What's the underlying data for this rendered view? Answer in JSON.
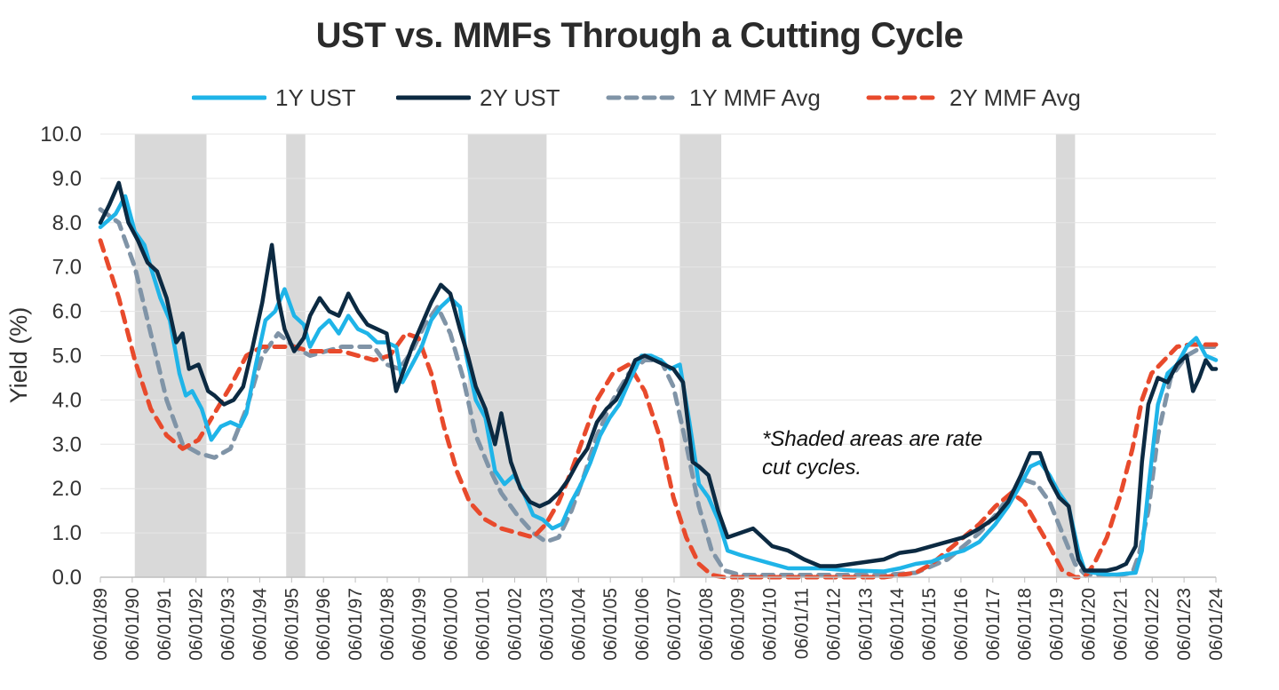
{
  "chart_data": {
    "type": "line",
    "title": "UST vs. MMFs Through a Cutting Cycle",
    "xlabel": "",
    "ylabel": "Yield (%)",
    "ylim": [
      0,
      10
    ],
    "xlim": [
      1989.42,
      2024.42
    ],
    "y_ticks": [
      "0.0",
      "1.0",
      "2.0",
      "3.0",
      "4.0",
      "5.0",
      "6.0",
      "7.0",
      "8.0",
      "9.0",
      "10.0"
    ],
    "x_ticks": [
      "06/01/89",
      "06/01/90",
      "06/01/91",
      "06/01/92",
      "06/01/93",
      "06/01/94",
      "06/01/95",
      "06/01/96",
      "06/01/97",
      "06/01/98",
      "06/01/99",
      "06/01/00",
      "06/01/01",
      "06/01/02",
      "06/01/03",
      "06/01/04",
      "06/01/05",
      "06/01/06",
      "06/01/07",
      "06/01/08",
      "06/01/09",
      "06/01/10",
      "06/01/11",
      "06/01/12",
      "06/01/13",
      "06/01/14",
      "06/01/15",
      "06/01/16",
      "06/01/17",
      "06/01/18",
      "06/01/19",
      "06/01/20",
      "06/01/21",
      "06/01/22",
      "06/01/23",
      "06/01/24"
    ],
    "grid": true,
    "legend_position": "top-center",
    "annotation": [
      "*Shaded areas are rate",
      "cut cycles."
    ],
    "shaded_periods": [
      [
        1990.5,
        1992.75
      ],
      [
        1995.25,
        1995.85
      ],
      [
        2000.95,
        2003.42
      ],
      [
        2007.6,
        2008.9
      ],
      [
        2019.4,
        2020.0
      ]
    ],
    "series": [
      {
        "name": "1Y UST",
        "color": "#1fb4e8",
        "style": "solid",
        "x": [
          1989.42,
          1989.9,
          1990.2,
          1990.5,
          1990.8,
          1991.0,
          1991.3,
          1991.6,
          1991.9,
          1992.1,
          1992.3,
          1992.6,
          1992.9,
          1993.2,
          1993.5,
          1993.8,
          1994.0,
          1994.3,
          1994.6,
          1994.9,
          1995.2,
          1995.5,
          1995.8,
          1996.0,
          1996.3,
          1996.6,
          1996.9,
          1997.2,
          1997.5,
          1997.8,
          1998.1,
          1998.4,
          1998.7,
          1998.9,
          1999.2,
          1999.5,
          1999.8,
          2000.1,
          2000.4,
          2000.7,
          2000.9,
          2001.2,
          2001.5,
          2001.8,
          2002.1,
          2002.4,
          2002.7,
          2003.0,
          2003.3,
          2003.6,
          2003.9,
          2004.2,
          2004.5,
          2004.8,
          2005.1,
          2005.4,
          2005.7,
          2006.0,
          2006.4,
          2006.7,
          2007.0,
          2007.3,
          2007.6,
          2007.9,
          2008.2,
          2008.5,
          2008.8,
          2009.1,
          2009.5,
          2010.0,
          2010.5,
          2011.0,
          2011.5,
          2012.0,
          2013.0,
          2014.0,
          2014.5,
          2015.0,
          2015.5,
          2016.0,
          2016.5,
          2017.0,
          2017.5,
          2017.9,
          2018.3,
          2018.6,
          2018.9,
          2019.2,
          2019.5,
          2019.8,
          2020.1,
          2020.3,
          2020.6,
          2021.0,
          2021.3,
          2021.6,
          2021.9,
          2022.1,
          2022.3,
          2022.6,
          2022.9,
          2023.2,
          2023.5,
          2023.8,
          2024.1,
          2024.42
        ],
        "values": [
          7.9,
          8.2,
          8.6,
          7.8,
          7.5,
          7.0,
          6.3,
          5.8,
          4.6,
          4.1,
          4.2,
          3.8,
          3.1,
          3.4,
          3.5,
          3.4,
          3.7,
          4.8,
          5.8,
          6.0,
          6.5,
          5.9,
          5.7,
          5.2,
          5.6,
          5.8,
          5.5,
          5.9,
          5.6,
          5.5,
          5.3,
          5.3,
          5.2,
          4.4,
          4.8,
          5.2,
          5.8,
          6.1,
          6.3,
          6.1,
          5.0,
          4.0,
          3.6,
          2.4,
          2.1,
          2.3,
          1.9,
          1.4,
          1.3,
          1.1,
          1.2,
          1.7,
          2.1,
          2.6,
          3.2,
          3.6,
          3.9,
          4.4,
          5.0,
          5.0,
          4.9,
          4.7,
          4.8,
          3.5,
          2.1,
          1.8,
          1.3,
          0.6,
          0.5,
          0.4,
          0.3,
          0.2,
          0.2,
          0.2,
          0.15,
          0.13,
          0.2,
          0.3,
          0.35,
          0.5,
          0.6,
          0.8,
          1.2,
          1.6,
          2.1,
          2.5,
          2.6,
          2.3,
          1.9,
          1.6,
          0.6,
          0.15,
          0.1,
          0.06,
          0.06,
          0.08,
          0.1,
          0.6,
          2.0,
          3.9,
          4.6,
          4.8,
          5.2,
          5.4,
          5.0,
          4.9
        ]
      },
      {
        "name": "2Y UST",
        "color": "#0c2a42",
        "style": "solid",
        "x": [
          1989.42,
          1989.7,
          1990.0,
          1990.3,
          1990.6,
          1990.9,
          1991.2,
          1991.5,
          1991.8,
          1992.0,
          1992.2,
          1992.5,
          1992.8,
          1993.0,
          1993.3,
          1993.6,
          1993.9,
          1994.2,
          1994.5,
          1994.8,
          1995.0,
          1995.2,
          1995.5,
          1995.8,
          1996.0,
          1996.3,
          1996.6,
          1996.9,
          1997.2,
          1997.5,
          1997.8,
          1998.1,
          1998.4,
          1998.7,
          1998.9,
          1999.2,
          1999.5,
          1999.8,
          2000.1,
          2000.4,
          2000.7,
          2000.95,
          2001.2,
          2001.5,
          2001.8,
          2002.0,
          2002.3,
          2002.6,
          2002.9,
          2003.2,
          2003.5,
          2003.8,
          2004.1,
          2004.4,
          2004.7,
          2005.0,
          2005.3,
          2005.6,
          2005.9,
          2006.2,
          2006.5,
          2006.8,
          2007.1,
          2007.4,
          2007.7,
          2008.0,
          2008.2,
          2008.5,
          2008.8,
          2009.1,
          2009.5,
          2009.9,
          2010.2,
          2010.5,
          2011.0,
          2011.5,
          2012.0,
          2012.5,
          2013.0,
          2013.5,
          2014.0,
          2014.5,
          2015.0,
          2015.5,
          2016.0,
          2016.5,
          2017.0,
          2017.5,
          2017.9,
          2018.3,
          2018.6,
          2018.9,
          2019.2,
          2019.5,
          2019.8,
          2020.1,
          2020.3,
          2020.6,
          2021.0,
          2021.3,
          2021.6,
          2021.9,
          2022.1,
          2022.3,
          2022.6,
          2022.9,
          2023.2,
          2023.5,
          2023.7,
          2023.9,
          2024.1,
          2024.3,
          2024.42
        ],
        "values": [
          8.0,
          8.4,
          8.9,
          8.0,
          7.6,
          7.1,
          6.9,
          6.3,
          5.3,
          5.5,
          4.7,
          4.8,
          4.2,
          4.1,
          3.9,
          4.0,
          4.3,
          5.2,
          6.2,
          7.5,
          6.3,
          5.6,
          5.1,
          5.4,
          5.9,
          6.3,
          6.0,
          5.9,
          6.4,
          6.0,
          5.7,
          5.6,
          5.5,
          4.2,
          4.6,
          5.2,
          5.7,
          6.2,
          6.6,
          6.4,
          5.6,
          5.0,
          4.3,
          3.8,
          3.0,
          3.7,
          2.6,
          2.0,
          1.7,
          1.6,
          1.7,
          1.9,
          2.2,
          2.6,
          2.9,
          3.5,
          3.8,
          4.0,
          4.4,
          4.9,
          5.0,
          4.9,
          4.8,
          4.7,
          4.4,
          2.6,
          2.5,
          2.3,
          1.5,
          0.9,
          1.0,
          1.1,
          0.9,
          0.7,
          0.6,
          0.4,
          0.25,
          0.25,
          0.3,
          0.35,
          0.4,
          0.55,
          0.6,
          0.7,
          0.8,
          0.9,
          1.1,
          1.35,
          1.7,
          2.3,
          2.8,
          2.8,
          2.2,
          1.8,
          1.6,
          0.4,
          0.15,
          0.15,
          0.15,
          0.2,
          0.3,
          0.7,
          2.6,
          3.9,
          4.5,
          4.4,
          4.8,
          5.0,
          4.2,
          4.5,
          4.9,
          4.7,
          4.7
        ]
      },
      {
        "name": "1Y MMF Avg",
        "color": "#8094a7",
        "style": "dashed",
        "x": [
          1989.42,
          1990.0,
          1990.5,
          1991.0,
          1991.5,
          1992.0,
          1992.5,
          1993.0,
          1993.5,
          1994.0,
          1994.5,
          1995.0,
          1995.5,
          1996.0,
          1997.0,
          1998.0,
          1998.4,
          1998.8,
          1999.2,
          1999.6,
          2000.0,
          2000.4,
          2000.8,
          2001.2,
          2001.6,
          2002.0,
          2002.5,
          2003.0,
          2003.4,
          2003.8,
          2004.2,
          2004.6,
          2005.0,
          2005.5,
          2006.0,
          2006.5,
          2007.0,
          2007.4,
          2007.8,
          2008.2,
          2008.6,
          2009.0,
          2009.5,
          2010.0,
          2011.0,
          2012.0,
          2013.0,
          2014.0,
          2015.0,
          2016.0,
          2017.0,
          2017.5,
          2018.0,
          2018.4,
          2018.8,
          2019.2,
          2019.6,
          2020.0,
          2020.3,
          2020.6,
          2021.0,
          2021.4,
          2021.8,
          2022.0,
          2022.3,
          2022.6,
          2023.0,
          2023.5,
          2024.0,
          2024.42
        ],
        "values": [
          8.3,
          8.0,
          7.0,
          5.5,
          4.0,
          3.0,
          2.8,
          2.7,
          2.9,
          3.8,
          5.0,
          5.5,
          5.2,
          5.0,
          5.2,
          5.2,
          4.8,
          4.7,
          5.1,
          5.7,
          6.1,
          5.5,
          4.5,
          3.2,
          2.5,
          1.9,
          1.4,
          1.0,
          0.8,
          0.9,
          1.5,
          2.3,
          3.2,
          4.0,
          4.6,
          4.9,
          4.9,
          4.3,
          3.0,
          1.6,
          0.6,
          0.15,
          0.05,
          0.05,
          0.05,
          0.05,
          0.05,
          0.05,
          0.1,
          0.4,
          1.0,
          1.4,
          1.9,
          2.2,
          2.1,
          1.7,
          1.0,
          0.3,
          0.07,
          0.05,
          0.05,
          0.05,
          0.1,
          0.5,
          1.5,
          3.2,
          4.5,
          5.0,
          5.2,
          5.2
        ]
      },
      {
        "name": "2Y MMF Avg",
        "color": "#e84a2c",
        "style": "dashed",
        "x": [
          1989.42,
          1990.0,
          1990.5,
          1991.0,
          1991.5,
          1992.0,
          1992.5,
          1993.0,
          1993.5,
          1994.0,
          1994.5,
          1995.0,
          1995.5,
          1996.0,
          1997.0,
          1998.0,
          1998.5,
          1999.0,
          1999.4,
          1999.8,
          2000.2,
          2000.6,
          2001.0,
          2001.5,
          2002.0,
          2002.5,
          2003.0,
          2003.4,
          2003.8,
          2004.2,
          2004.6,
          2005.0,
          2005.5,
          2006.0,
          2006.5,
          2007.0,
          2007.4,
          2007.8,
          2008.2,
          2008.6,
          2009.0,
          2010.0,
          2011.0,
          2012.0,
          2013.0,
          2014.0,
          2014.5,
          2015.0,
          2015.5,
          2016.0,
          2016.5,
          2017.0,
          2017.5,
          2018.0,
          2018.4,
          2018.8,
          2019.2,
          2019.6,
          2020.0,
          2020.3,
          2020.6,
          2021.0,
          2021.4,
          2021.8,
          2022.1,
          2022.4,
          2022.8,
          2023.2,
          2023.6,
          2024.0,
          2024.42
        ],
        "values": [
          7.6,
          6.3,
          4.9,
          3.8,
          3.2,
          2.9,
          3.1,
          3.7,
          4.3,
          5.0,
          5.2,
          5.2,
          5.2,
          5.1,
          5.1,
          4.9,
          5.0,
          5.5,
          5.4,
          4.6,
          3.4,
          2.4,
          1.7,
          1.3,
          1.1,
          1.0,
          0.9,
          1.2,
          1.7,
          2.4,
          3.2,
          4.0,
          4.6,
          4.8,
          4.2,
          3.1,
          1.8,
          0.9,
          0.3,
          0.05,
          0.0,
          0.0,
          0.0,
          0.0,
          0.0,
          0.0,
          0.05,
          0.1,
          0.3,
          0.6,
          0.9,
          1.2,
          1.6,
          1.9,
          1.7,
          1.2,
          0.7,
          0.15,
          0.0,
          0.0,
          0.3,
          0.9,
          1.8,
          2.9,
          4.0,
          4.6,
          4.9,
          5.2,
          5.25,
          5.25,
          5.25
        ]
      }
    ]
  }
}
